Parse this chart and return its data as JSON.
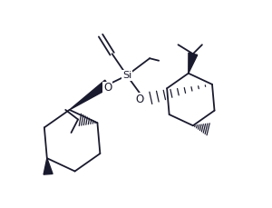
{
  "bg_color": "#ffffff",
  "line_color": "#1a1a2e",
  "fig_width": 3.0,
  "fig_height": 2.29,
  "dpi": 100,
  "si_label": "Si",
  "o_label": "O",
  "lw": 1.3
}
